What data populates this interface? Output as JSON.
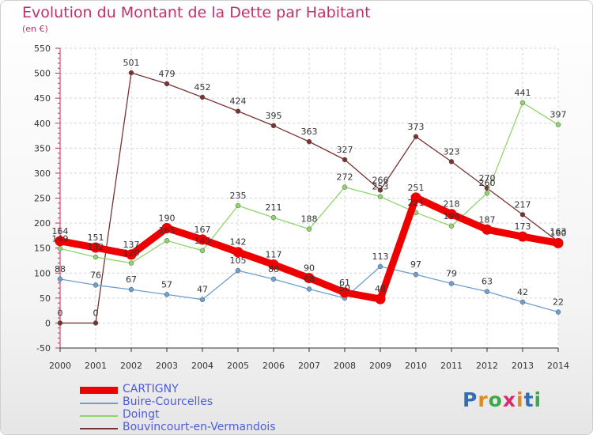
{
  "header": {
    "title": "Evolution du Montant de la Dette par Habitant",
    "unit": "(en €)"
  },
  "logo": {
    "text": "Proxiti",
    "letters": [
      "P",
      "r",
      "o",
      "x",
      "i",
      "t",
      "i"
    ],
    "colors": [
      "#2f6fb7",
      "#e08a1e",
      "#3fa84a",
      "#d92b6b",
      "#e08a1e",
      "#2f6fb7",
      "#3fa84a"
    ]
  },
  "chart_data": {
    "type": "line",
    "x": [
      "2000",
      "2001",
      "2002",
      "2003",
      "2004",
      "2005",
      "2006",
      "2007",
      "2008",
      "2009",
      "2010",
      "2011",
      "2012",
      "2013",
      "2014"
    ],
    "ylim": [
      -50,
      550
    ],
    "yticks": [
      "-50",
      "0",
      "50",
      "100",
      "150",
      "200",
      "250",
      "300",
      "350",
      "400",
      "450",
      "500",
      "550"
    ],
    "grid": true,
    "legend_position": "bottom-left",
    "series": [
      {
        "name": "CARTIGNY",
        "color": "#ee0000",
        "values": [
          164,
          151,
          137,
          190,
          167,
          142,
          117,
          90,
          61,
          48,
          251,
          218,
          187,
          173,
          160
        ]
      },
      {
        "name": "Buire-Courcelles",
        "color": "#6e9fd0",
        "values": [
          88,
          76,
          67,
          57,
          47,
          105,
          88,
          68,
          50,
          113,
          97,
          79,
          63,
          42,
          22
        ]
      },
      {
        "name": "Doingt",
        "color": "#8fd46a",
        "values": [
          149,
          132,
          120,
          165,
          145,
          235,
          211,
          188,
          272,
          253,
          221,
          194,
          260,
          441,
          397
        ]
      },
      {
        "name": "Bouvincourt-en-Vermandois",
        "color": "#7a3232",
        "values": [
          0,
          0,
          501,
          479,
          452,
          424,
          395,
          363,
          327,
          266,
          373,
          323,
          270,
          217,
          163
        ]
      }
    ]
  }
}
